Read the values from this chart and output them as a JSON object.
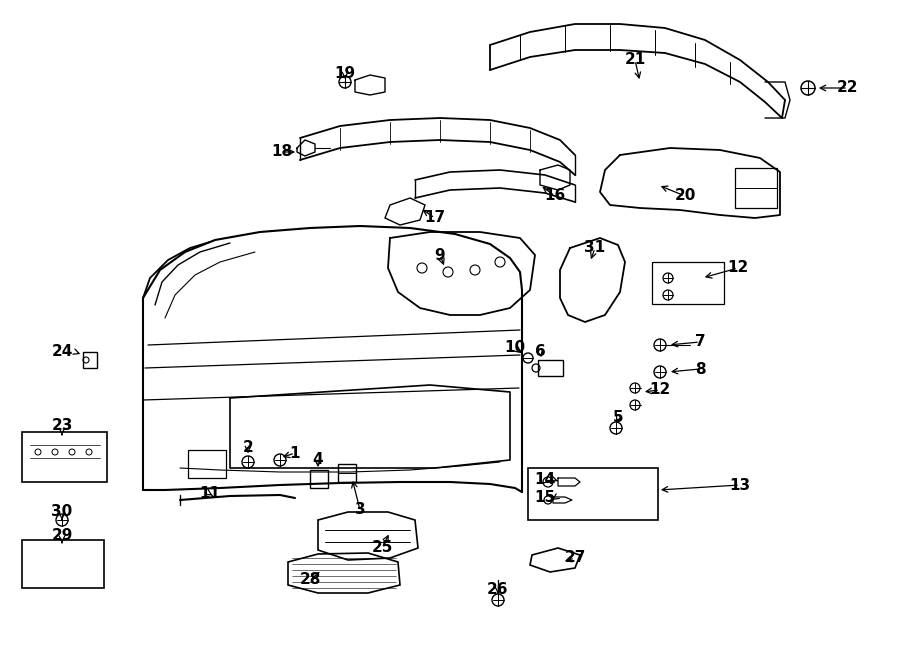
{
  "bg_color": "#ffffff",
  "line_color": "#000000",
  "text_color": "#000000",
  "lw_main": 1.3,
  "lw_thin": 0.8,
  "fontsize": 11
}
